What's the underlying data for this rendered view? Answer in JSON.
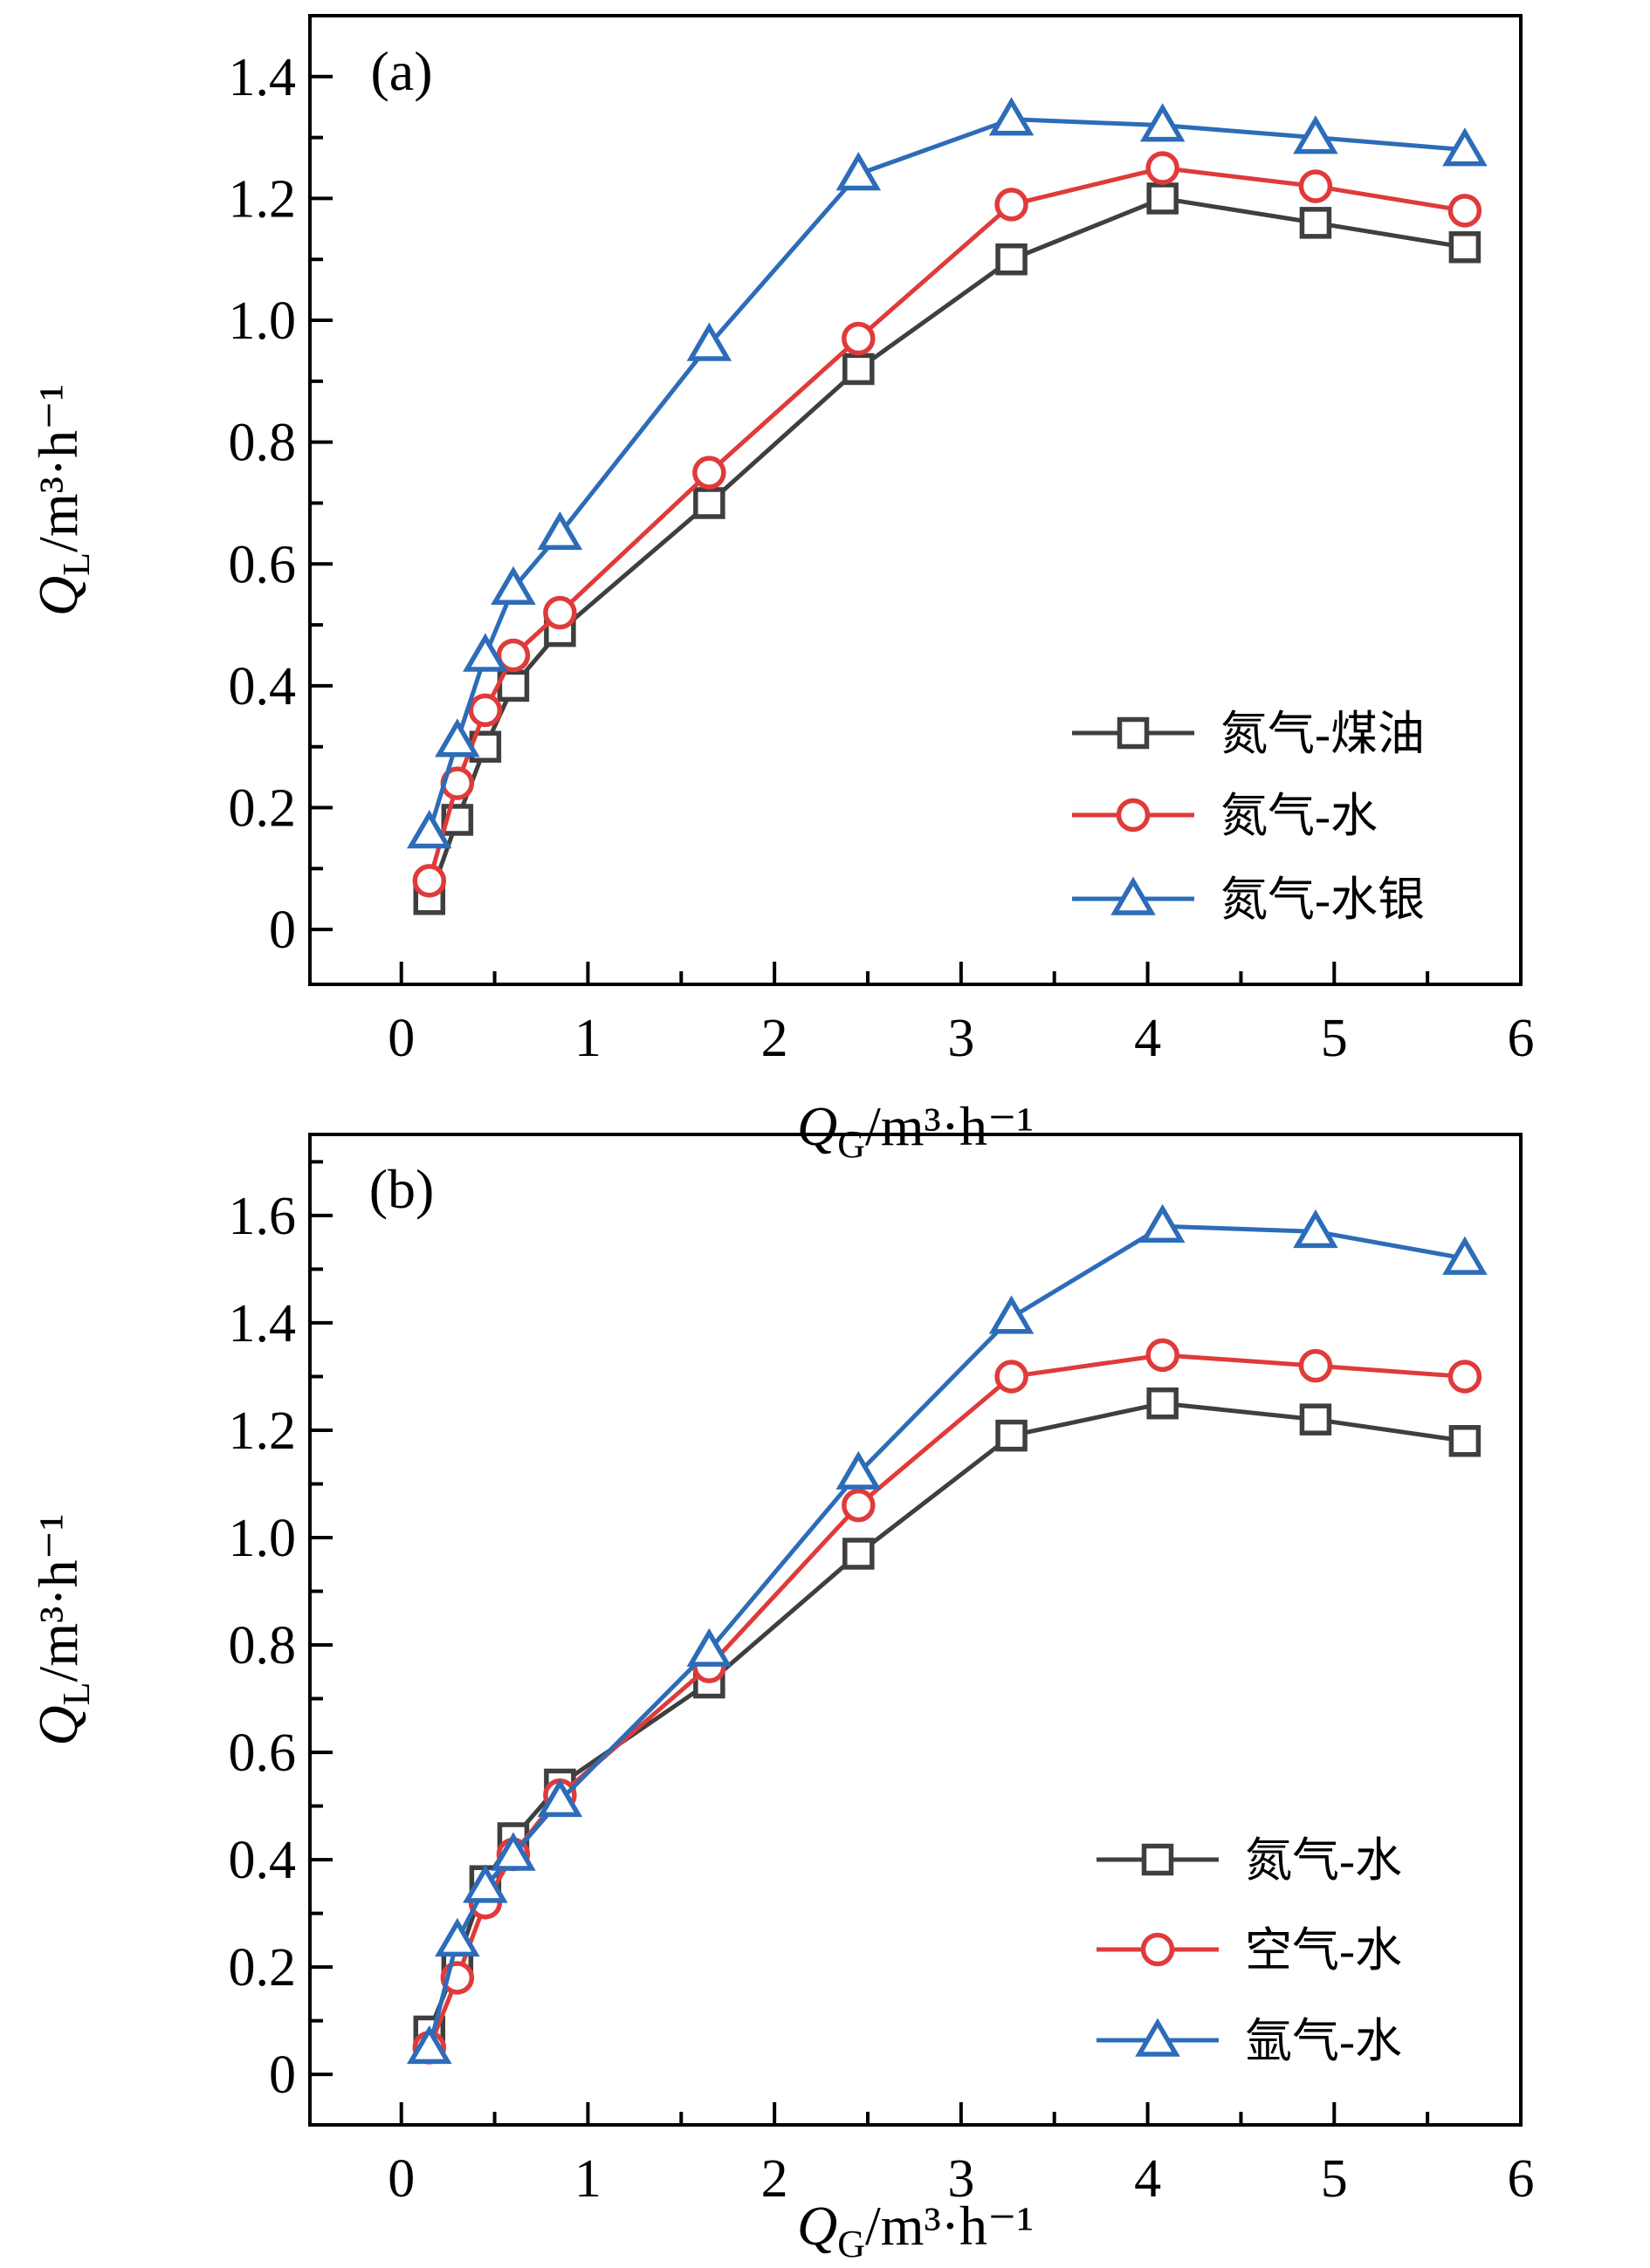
{
  "figure": {
    "background": "#ffffff",
    "text_color": "#000000"
  },
  "chart_data": [
    {
      "type": "line",
      "panel_label": "(a)",
      "xlabel": {
        "pre": "Q",
        "sub": "G",
        "post": "/m³·h⁻¹"
      },
      "ylabel": {
        "pre": "Q",
        "sub": "L",
        "post": "/m³·h⁻¹"
      },
      "x_ticks": [
        "0",
        "1",
        "2",
        "3",
        "4",
        "5",
        "6"
      ],
      "y_ticks": [
        "0",
        "0.2",
        "0.4",
        "0.6",
        "0.8",
        "1.0",
        "1.2",
        "1.4"
      ],
      "xlim": [
        -0.49,
        6.0
      ],
      "ylim": [
        -0.09,
        1.5
      ],
      "grid": false,
      "legend_position": "center-right",
      "x": [
        0.15,
        0.3,
        0.45,
        0.6,
        0.85,
        1.65,
        2.45,
        3.27,
        4.08,
        4.9,
        5.7
      ],
      "series": [
        {
          "name": "氮气-煤油",
          "marker": "square",
          "color": "#3f3f3f",
          "values": [
            0.05,
            0.18,
            0.3,
            0.4,
            0.49,
            0.7,
            0.92,
            1.1,
            1.2,
            1.16,
            1.12
          ]
        },
        {
          "name": "氮气-水",
          "marker": "circle",
          "color": "#e03a3a",
          "values": [
            0.08,
            0.24,
            0.36,
            0.45,
            0.52,
            0.75,
            0.97,
            1.19,
            1.25,
            1.22,
            1.18
          ]
        },
        {
          "name": "氮气-水银",
          "marker": "triangle",
          "color": "#2c6cb8",
          "values": [
            0.16,
            0.31,
            0.45,
            0.56,
            0.65,
            0.96,
            1.24,
            1.33,
            1.32,
            1.3,
            1.28
          ]
        }
      ]
    },
    {
      "type": "line",
      "panel_label": "(b)",
      "xlabel": {
        "pre": "Q",
        "sub": "G",
        "post": "/m³·h⁻¹"
      },
      "ylabel": {
        "pre": "Q",
        "sub": "L",
        "post": "/m³·h⁻¹"
      },
      "x_ticks": [
        "0",
        "1",
        "2",
        "3",
        "4",
        "5",
        "6"
      ],
      "y_ticks": [
        "0",
        "0.2",
        "0.4",
        "0.6",
        "0.8",
        "1.0",
        "1.2",
        "1.4",
        "1.6"
      ],
      "xlim": [
        -0.49,
        6.0
      ],
      "ylim": [
        -0.094,
        1.751
      ],
      "grid": false,
      "legend_position": "center-right",
      "x": [
        0.15,
        0.3,
        0.45,
        0.6,
        0.85,
        1.65,
        2.45,
        3.27,
        4.08,
        4.9,
        5.7
      ],
      "series": [
        {
          "name": "氮气-水",
          "marker": "square",
          "color": "#3f3f3f",
          "values": [
            0.08,
            0.21,
            0.36,
            0.44,
            0.54,
            0.73,
            0.97,
            1.19,
            1.25,
            1.22,
            1.18
          ]
        },
        {
          "name": "空气-水",
          "marker": "circle",
          "color": "#e03a3a",
          "values": [
            0.05,
            0.18,
            0.32,
            0.41,
            0.52,
            0.76,
            1.06,
            1.3,
            1.34,
            1.32,
            1.3
          ]
        },
        {
          "name": "氩气-水",
          "marker": "triangle",
          "color": "#2c6cb8",
          "values": [
            0.05,
            0.25,
            0.35,
            0.41,
            0.51,
            0.79,
            1.12,
            1.41,
            1.58,
            1.57,
            1.52
          ]
        }
      ]
    }
  ]
}
